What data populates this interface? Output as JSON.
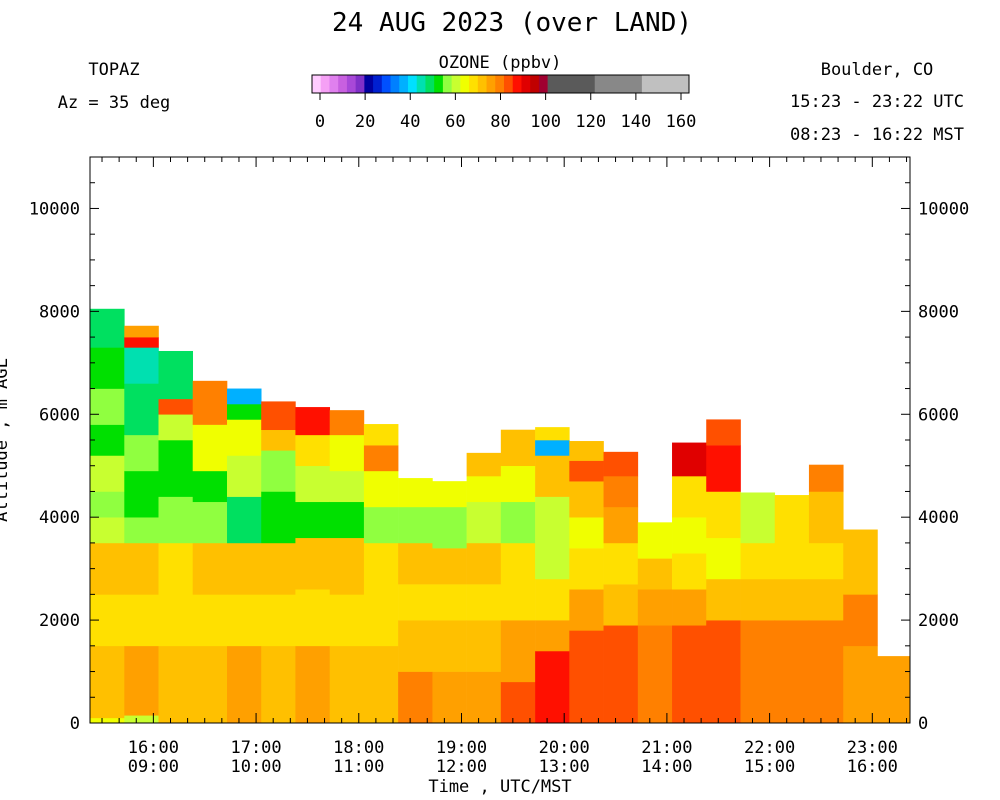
{
  "chart_data": {
    "type": "heatmap",
    "title": "24 AUG 2023 (over LAND)",
    "instrument": "TOPAZ",
    "azimuth": "Az =  35 deg",
    "location": "Boulder, CO",
    "utc_range": "15:23 - 23:22 UTC",
    "mst_range": "08:23 - 16:22 MST",
    "colorbar": {
      "title": "OZONE (ppbv)",
      "tick_labels": [
        "0",
        "20",
        "40",
        "60",
        "80",
        "100",
        "120",
        "140",
        "160"
      ],
      "range": [
        0,
        160
      ],
      "colors": [
        "#ffccff",
        "#f5a0f5",
        "#e080ee",
        "#c860e0",
        "#a848d8",
        "#8030c8",
        "#0000a0",
        "#0020d0",
        "#0050ff",
        "#0080ff",
        "#00b0ff",
        "#00e0ff",
        "#00e0b0",
        "#00e060",
        "#00e000",
        "#90ff40",
        "#c8ff30",
        "#f0ff00",
        "#ffe000",
        "#ffc000",
        "#ffa000",
        "#ff8000",
        "#ff5000",
        "#ff1000",
        "#e00000",
        "#c00000",
        "#a00030",
        "#5a5a5a",
        "#888888",
        "#c0c0c0"
      ]
    },
    "ylabel": "Altitude , m AGL",
    "xlabel": "Time , UTC/MST",
    "y_ticks": [
      "0",
      "2000",
      "4000",
      "6000",
      "8000",
      "10000"
    ],
    "ylim": [
      0,
      11000
    ],
    "x_ticks": [
      {
        "utc": "16:00",
        "mst": "09:00"
      },
      {
        "utc": "17:00",
        "mst": "10:00"
      },
      {
        "utc": "18:00",
        "mst": "11:00"
      },
      {
        "utc": "19:00",
        "mst": "12:00"
      },
      {
        "utc": "20:00",
        "mst": "13:00"
      },
      {
        "utc": "21:00",
        "mst": "14:00"
      },
      {
        "utc": "22:00",
        "mst": "15:00"
      },
      {
        "utc": "23:00",
        "mst": "16:00"
      }
    ],
    "time_range_hours": [
      15.383,
      23.367
    ],
    "columns": [
      {
        "start": 15.383,
        "end": 15.717,
        "top": 8050,
        "profile": [
          [
            0,
            100,
            64
          ],
          [
            100,
            1500,
            74
          ],
          [
            1500,
            2500,
            70
          ],
          [
            2500,
            3500,
            72
          ],
          [
            3500,
            4000,
            62
          ],
          [
            4000,
            4500,
            56
          ],
          [
            4500,
            5200,
            60
          ],
          [
            5200,
            5800,
            52
          ],
          [
            5800,
            6500,
            58
          ],
          [
            6500,
            7300,
            52
          ],
          [
            7300,
            8050,
            50
          ]
        ]
      },
      {
        "start": 15.717,
        "end": 16.05,
        "top": 7720,
        "profile": [
          [
            0,
            150,
            60
          ],
          [
            150,
            1500,
            75
          ],
          [
            1500,
            2500,
            68
          ],
          [
            2500,
            3500,
            72
          ],
          [
            3500,
            4000,
            58
          ],
          [
            4000,
            4900,
            52
          ],
          [
            4900,
            5600,
            58
          ],
          [
            5600,
            6600,
            50
          ],
          [
            6600,
            7300,
            48
          ],
          [
            7300,
            7500,
            88
          ],
          [
            7500,
            7720,
            76
          ]
        ]
      },
      {
        "start": 16.05,
        "end": 16.383,
        "top": 7230,
        "profile": [
          [
            0,
            1500,
            73
          ],
          [
            1500,
            2500,
            68
          ],
          [
            2500,
            3500,
            70
          ],
          [
            3500,
            4400,
            58
          ],
          [
            4400,
            5500,
            54
          ],
          [
            5500,
            6000,
            60
          ],
          [
            6000,
            6300,
            82
          ],
          [
            6300,
            7230,
            50
          ]
        ]
      },
      {
        "start": 16.383,
        "end": 16.717,
        "top": 6650,
        "profile": [
          [
            0,
            1500,
            74
          ],
          [
            1500,
            2500,
            67
          ],
          [
            2500,
            3500,
            73
          ],
          [
            3500,
            4300,
            58
          ],
          [
            4300,
            4900,
            52
          ],
          [
            4900,
            5800,
            63
          ],
          [
            5800,
            6650,
            78
          ]
        ]
      },
      {
        "start": 16.717,
        "end": 17.05,
        "top": 6500,
        "profile": [
          [
            0,
            1500,
            75
          ],
          [
            1500,
            2500,
            68
          ],
          [
            2500,
            3500,
            71
          ],
          [
            3500,
            4400,
            50
          ],
          [
            4400,
            5200,
            60
          ],
          [
            5200,
            5900,
            66
          ],
          [
            5900,
            6200,
            52
          ],
          [
            6200,
            6500,
            38
          ]
        ]
      },
      {
        "start": 17.05,
        "end": 17.383,
        "top": 6250,
        "profile": [
          [
            0,
            1500,
            74
          ],
          [
            1500,
            2500,
            67
          ],
          [
            2500,
            3500,
            73
          ],
          [
            3500,
            4500,
            54
          ],
          [
            4500,
            5300,
            58
          ],
          [
            5300,
            5700,
            72
          ],
          [
            5700,
            6250,
            84
          ]
        ]
      },
      {
        "start": 17.383,
        "end": 17.717,
        "top": 6140,
        "profile": [
          [
            0,
            1500,
            75
          ],
          [
            1500,
            2600,
            69
          ],
          [
            2600,
            3600,
            72
          ],
          [
            3600,
            4300,
            55
          ],
          [
            4300,
            5000,
            60
          ],
          [
            5000,
            5600,
            68
          ],
          [
            5600,
            6140,
            86
          ]
        ]
      },
      {
        "start": 17.717,
        "end": 18.05,
        "top": 6080,
        "profile": [
          [
            0,
            1500,
            74
          ],
          [
            1500,
            2500,
            68
          ],
          [
            2500,
            3600,
            74
          ],
          [
            3600,
            4300,
            54
          ],
          [
            4300,
            4900,
            62
          ],
          [
            4900,
            5600,
            66
          ],
          [
            5600,
            6080,
            78
          ]
        ]
      },
      {
        "start": 18.05,
        "end": 18.383,
        "top": 5810,
        "profile": [
          [
            0,
            1500,
            73
          ],
          [
            1500,
            2600,
            67
          ],
          [
            2600,
            3500,
            70
          ],
          [
            3500,
            4200,
            56
          ],
          [
            4200,
            4900,
            64
          ],
          [
            4900,
            5400,
            78
          ],
          [
            5400,
            5810,
            70
          ]
        ]
      },
      {
        "start": 18.383,
        "end": 18.717,
        "top": 4760,
        "profile": [
          [
            0,
            1000,
            78
          ],
          [
            1000,
            2000,
            73
          ],
          [
            2000,
            2700,
            69
          ],
          [
            2700,
            3500,
            72
          ],
          [
            3500,
            4200,
            58
          ],
          [
            4200,
            4760,
            65
          ]
        ]
      },
      {
        "start": 18.717,
        "end": 19.05,
        "top": 4700,
        "profile": [
          [
            0,
            1000,
            75
          ],
          [
            1000,
            2000,
            72
          ],
          [
            2000,
            2700,
            69
          ],
          [
            2700,
            3400,
            72
          ],
          [
            3400,
            4200,
            56
          ],
          [
            4200,
            4700,
            66
          ]
        ]
      },
      {
        "start": 19.05,
        "end": 19.383,
        "top": 5250,
        "profile": [
          [
            0,
            1000,
            77
          ],
          [
            1000,
            2000,
            73
          ],
          [
            2000,
            2700,
            68
          ],
          [
            2700,
            3500,
            72
          ],
          [
            3500,
            4300,
            60
          ],
          [
            4300,
            4800,
            66
          ],
          [
            4800,
            5250,
            72
          ]
        ]
      },
      {
        "start": 19.383,
        "end": 19.717,
        "top": 5700,
        "profile": [
          [
            0,
            800,
            84
          ],
          [
            800,
            2000,
            76
          ],
          [
            2000,
            2800,
            69
          ],
          [
            2800,
            3500,
            70
          ],
          [
            3500,
            4300,
            58
          ],
          [
            4300,
            5000,
            64
          ],
          [
            5000,
            5700,
            72
          ]
        ]
      },
      {
        "start": 19.717,
        "end": 20.05,
        "top": 5750,
        "profile": [
          [
            0,
            1400,
            86
          ],
          [
            1400,
            2000,
            76
          ],
          [
            2000,
            2800,
            70
          ],
          [
            2800,
            3600,
            60
          ],
          [
            3600,
            4400,
            62
          ],
          [
            4400,
            5200,
            72
          ],
          [
            5200,
            5500,
            40
          ],
          [
            5500,
            5750,
            70
          ]
        ]
      },
      {
        "start": 20.05,
        "end": 20.383,
        "top": 5480,
        "profile": [
          [
            0,
            1800,
            84
          ],
          [
            1800,
            2600,
            75
          ],
          [
            2600,
            3400,
            68
          ],
          [
            3400,
            4000,
            64
          ],
          [
            4000,
            4700,
            72
          ],
          [
            4700,
            5100,
            84
          ],
          [
            5100,
            5480,
            74
          ]
        ]
      },
      {
        "start": 20.383,
        "end": 20.717,
        "top": 5270,
        "profile": [
          [
            0,
            1900,
            84
          ],
          [
            1900,
            2700,
            73
          ],
          [
            2700,
            3500,
            68
          ],
          [
            3500,
            4200,
            76
          ],
          [
            4200,
            4800,
            80
          ],
          [
            4800,
            5270,
            84
          ]
        ]
      },
      {
        "start": 20.717,
        "end": 21.05,
        "top": 3900,
        "profile": [
          [
            0,
            1900,
            80
          ],
          [
            1900,
            2600,
            75
          ],
          [
            2600,
            3200,
            72
          ],
          [
            3200,
            3900,
            66
          ]
        ]
      },
      {
        "start": 21.05,
        "end": 21.383,
        "top": 5450,
        "profile": [
          [
            0,
            1900,
            82
          ],
          [
            1900,
            2600,
            75
          ],
          [
            2600,
            3300,
            70
          ],
          [
            3300,
            4000,
            66
          ],
          [
            4000,
            4800,
            68
          ],
          [
            4800,
            5450,
            90
          ]
        ]
      },
      {
        "start": 21.383,
        "end": 21.717,
        "top": 5900,
        "profile": [
          [
            0,
            2000,
            82
          ],
          [
            2000,
            2800,
            74
          ],
          [
            2800,
            3600,
            66
          ],
          [
            3600,
            4500,
            68
          ],
          [
            4500,
            5400,
            86
          ],
          [
            5400,
            5900,
            82
          ]
        ]
      },
      {
        "start": 21.717,
        "end": 22.05,
        "top": 4480,
        "profile": [
          [
            0,
            2000,
            78
          ],
          [
            2000,
            2800,
            72
          ],
          [
            2800,
            3500,
            68
          ],
          [
            3500,
            4480,
            62
          ]
        ]
      },
      {
        "start": 22.05,
        "end": 22.383,
        "top": 4430,
        "profile": [
          [
            0,
            2000,
            79
          ],
          [
            2000,
            2800,
            72
          ],
          [
            2800,
            3500,
            69
          ],
          [
            3500,
            4430,
            70
          ]
        ]
      },
      {
        "start": 22.383,
        "end": 22.717,
        "top": 5020,
        "profile": [
          [
            0,
            2000,
            80
          ],
          [
            2000,
            2800,
            73
          ],
          [
            2800,
            3500,
            70
          ],
          [
            3500,
            4500,
            72
          ],
          [
            4500,
            5020,
            80
          ]
        ]
      },
      {
        "start": 22.717,
        "end": 23.05,
        "top": 3760,
        "profile": [
          [
            0,
            1500,
            76
          ],
          [
            1500,
            2500,
            78
          ],
          [
            2500,
            3760,
            72
          ]
        ]
      },
      {
        "start": 23.05,
        "end": 23.367,
        "top": 1300,
        "profile": [
          [
            0,
            1300,
            76
          ]
        ]
      }
    ]
  }
}
